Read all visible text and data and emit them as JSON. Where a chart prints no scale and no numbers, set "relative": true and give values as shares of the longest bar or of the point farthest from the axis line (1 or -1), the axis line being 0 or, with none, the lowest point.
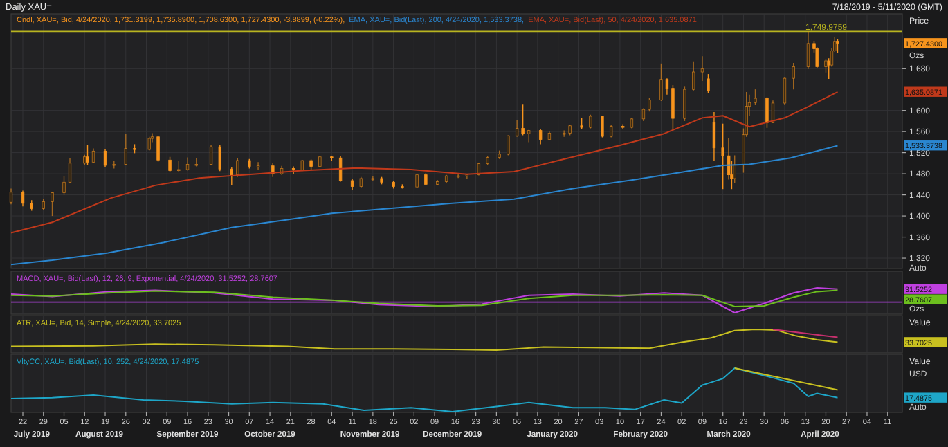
{
  "chart_data": [
    {
      "type": "candlestick",
      "title": "Daily XAU=",
      "subtitle": "7/18/2019 - 5/11/2020 (GMT)",
      "ylabel": "Price",
      "xlim": [
        "2019-07-18",
        "2020-05-16"
      ],
      "ylim": [
        1303,
        1757
      ],
      "grid": true,
      "legend": "top left",
      "tick_labels": "y",
      "yticks": [
        {
          "value": 1320,
          "label": "1,320"
        },
        {
          "value": 1360,
          "label": "1,360"
        },
        {
          "value": 1400,
          "label": "1,400"
        },
        {
          "value": 1440,
          "label": "1,440"
        },
        {
          "value": 1480,
          "label": "1,480"
        },
        {
          "value": 1520,
          "label": "1,520"
        },
        {
          "value": 1560,
          "label": "1,560"
        },
        {
          "value": 1600,
          "label": "1,600"
        },
        {
          "value": 1680,
          "label": "1,680"
        }
      ],
      "ref_lines": [
        {
          "axis": "y",
          "value": 1749.9759,
          "label": "1,749.9759",
          "color": "#b8b420"
        }
      ],
      "annotations": [
        "1,727.4300",
        "1,635.0871",
        "1,533.3738",
        "Ozs",
        "Auto"
      ],
      "series": [
        {
          "name": "Cndl, XAU=, Bid, 4/24/2020, 1,731.3199, 1,735.8900, 1,708.6300, 1,727.4300, -3.8899, (-0.22%),",
          "color": "#f7941d",
          "x": [
            "2019-07-18",
            "2019-07-22",
            "2019-07-25",
            "2019-07-29",
            "2019-08-01",
            "2019-08-05",
            "2019-08-07",
            "2019-08-12",
            "2019-08-13",
            "2019-08-15",
            "2019-08-19",
            "2019-08-22",
            "2019-08-26",
            "2019-08-29",
            "2019-09-03",
            "2019-09-04",
            "2019-09-06",
            "2019-09-10",
            "2019-09-13",
            "2019-09-16",
            "2019-09-19",
            "2019-09-24",
            "2019-09-27",
            "2019-10-01",
            "2019-10-03",
            "2019-10-07",
            "2019-10-10",
            "2019-10-15",
            "2019-10-18",
            "2019-10-22",
            "2019-10-25",
            "2019-10-28",
            "2019-10-31",
            "2019-11-04",
            "2019-11-07",
            "2019-11-11",
            "2019-11-14",
            "2019-11-18",
            "2019-11-21",
            "2019-11-25",
            "2019-11-28",
            "2019-12-03",
            "2019-12-06",
            "2019-12-10",
            "2019-12-13",
            "2019-12-17",
            "2019-12-20",
            "2019-12-24",
            "2019-12-27",
            "2019-12-31",
            "2020-01-03",
            "2020-01-06",
            "2020-01-08",
            "2020-01-10",
            "2020-01-14",
            "2020-01-17",
            "2020-01-22",
            "2020-01-24",
            "2020-01-28",
            "2020-01-31",
            "2020-02-04",
            "2020-02-07",
            "2020-02-11",
            "2020-02-14",
            "2020-02-18",
            "2020-02-20",
            "2020-02-24",
            "2020-02-26",
            "2020-02-28",
            "2020-03-03",
            "2020-03-06",
            "2020-03-09",
            "2020-03-11",
            "2020-03-13",
            "2020-03-16",
            "2020-03-18",
            "2020-03-19",
            "2020-03-20",
            "2020-03-23",
            "2020-03-24",
            "2020-03-25",
            "2020-03-27",
            "2020-03-31",
            "2020-04-02",
            "2020-04-06",
            "2020-04-09",
            "2020-04-14",
            "2020-04-16",
            "2020-04-17",
            "2020-04-20",
            "2020-04-21",
            "2020-04-22",
            "2020-04-23",
            "2020-04-24"
          ],
          "ohlc": [
            [
              1426,
              1452,
              1422,
              1445
            ],
            [
              1445,
              1448,
              1418,
              1424
            ],
            [
              1424,
              1430,
              1410,
              1414
            ],
            [
              1414,
              1432,
              1412,
              1427
            ],
            [
              1427,
              1446,
              1400,
              1444
            ],
            [
              1444,
              1475,
              1440,
              1464
            ],
            [
              1464,
              1510,
              1462,
              1500
            ],
            [
              1500,
              1516,
              1496,
              1512
            ],
            [
              1512,
              1534,
              1496,
              1502
            ],
            [
              1502,
              1528,
              1500,
              1523
            ],
            [
              1523,
              1526,
              1492,
              1496
            ],
            [
              1496,
              1504,
              1490,
              1498
            ],
            [
              1498,
              1555,
              1496,
              1528
            ],
            [
              1528,
              1536,
              1519,
              1526
            ],
            [
              1526,
              1550,
              1524,
              1547
            ],
            [
              1547,
              1557,
              1540,
              1550
            ],
            [
              1550,
              1552,
              1503,
              1506
            ],
            [
              1506,
              1512,
              1484,
              1486
            ],
            [
              1486,
              1504,
              1483,
              1488
            ],
            [
              1488,
              1511,
              1486,
              1498
            ],
            [
              1498,
              1510,
              1494,
              1498
            ],
            [
              1498,
              1535,
              1496,
              1531
            ],
            [
              1531,
              1534,
              1485,
              1489
            ],
            [
              1489,
              1492,
              1459,
              1478
            ],
            [
              1478,
              1510,
              1474,
              1505
            ],
            [
              1505,
              1508,
              1490,
              1494
            ],
            [
              1494,
              1502,
              1488,
              1495
            ],
            [
              1495,
              1500,
              1474,
              1480
            ],
            [
              1480,
              1495,
              1478,
              1490
            ],
            [
              1490,
              1494,
              1480,
              1487
            ],
            [
              1487,
              1506,
              1485,
              1505
            ],
            [
              1505,
              1507,
              1488,
              1494
            ],
            [
              1494,
              1514,
              1492,
              1512
            ],
            [
              1512,
              1514,
              1505,
              1510
            ],
            [
              1510,
              1513,
              1465,
              1467
            ],
            [
              1467,
              1470,
              1450,
              1456
            ],
            [
              1456,
              1474,
              1454,
              1471
            ],
            [
              1471,
              1475,
              1466,
              1471
            ],
            [
              1471,
              1474,
              1460,
              1464
            ],
            [
              1464,
              1466,
              1452,
              1456
            ],
            [
              1456,
              1460,
              1452,
              1455
            ],
            [
              1455,
              1480,
              1454,
              1478
            ],
            [
              1478,
              1481,
              1459,
              1460
            ],
            [
              1460,
              1468,
              1458,
              1465
            ],
            [
              1465,
              1478,
              1462,
              1476
            ],
            [
              1476,
              1479,
              1472,
              1476
            ],
            [
              1476,
              1480,
              1471,
              1478
            ],
            [
              1478,
              1500,
              1477,
              1499
            ],
            [
              1499,
              1514,
              1497,
              1511
            ],
            [
              1511,
              1524,
              1508,
              1517
            ],
            [
              1517,
              1553,
              1515,
              1552
            ],
            [
              1552,
              1582,
              1550,
              1566
            ],
            [
              1566,
              1611,
              1553,
              1556
            ],
            [
              1556,
              1563,
              1540,
              1562
            ],
            [
              1562,
              1564,
              1536,
              1545
            ],
            [
              1545,
              1560,
              1543,
              1557
            ],
            [
              1557,
              1562,
              1550,
              1557
            ],
            [
              1557,
              1573,
              1553,
              1571
            ],
            [
              1571,
              1586,
              1565,
              1568
            ],
            [
              1568,
              1592,
              1566,
              1589
            ],
            [
              1589,
              1590,
              1549,
              1551
            ],
            [
              1551,
              1573,
              1549,
              1570
            ],
            [
              1570,
              1574,
              1564,
              1568
            ],
            [
              1568,
              1585,
              1566,
              1584
            ],
            [
              1584,
              1604,
              1580,
              1602
            ],
            [
              1602,
              1624,
              1598,
              1620
            ],
            [
              1620,
              1689,
              1618,
              1659
            ],
            [
              1659,
              1661,
              1630,
              1642
            ],
            [
              1642,
              1648,
              1563,
              1585
            ],
            [
              1585,
              1645,
              1580,
              1640
            ],
            [
              1640,
              1693,
              1638,
              1673
            ],
            [
              1673,
              1703,
              1656,
              1680
            ],
            [
              1660,
              1669,
              1633,
              1637
            ],
            [
              1577,
              1597,
              1504,
              1529
            ],
            [
              1529,
              1575,
              1451,
              1514
            ],
            [
              1514,
              1548,
              1469,
              1478
            ],
            [
              1478,
              1504,
              1451,
              1471
            ],
            [
              1471,
              1515,
              1463,
              1497
            ],
            [
              1497,
              1566,
              1482,
              1554
            ],
            [
              1554,
              1635,
              1550,
              1608
            ],
            [
              1608,
              1630,
              1590,
              1615
            ],
            [
              1615,
              1640,
              1610,
              1623
            ],
            [
              1623,
              1625,
              1567,
              1577
            ],
            [
              1577,
              1619,
              1576,
              1614
            ],
            [
              1614,
              1664,
              1610,
              1661
            ],
            [
              1661,
              1690,
              1640,
              1683
            ],
            [
              1683,
              1749.98,
              1680,
              1727
            ],
            [
              1727,
              1732,
              1710,
              1717
            ],
            [
              1717,
              1720,
              1681,
              1683
            ],
            [
              1683,
              1698,
              1672,
              1694
            ],
            [
              1694,
              1699,
              1660,
              1686
            ],
            [
              1686,
              1718,
              1683,
              1713
            ],
            [
              1713,
              1739,
              1711,
              1731
            ],
            [
              1731.3199,
              1735.89,
              1708.63,
              1727.43
            ]
          ]
        },
        {
          "type": "line",
          "name": "EMA, XAU=, Bid(Last), 200, 4/24/2020, 1,533.3738,",
          "color": "#2a86d0",
          "x": [
            "2019-07-18",
            "2019-08-01",
            "2019-08-20",
            "2019-09-08",
            "2019-10-01",
            "2019-10-20",
            "2019-11-04",
            "2019-11-25",
            "2019-12-15",
            "2020-01-05",
            "2020-01-25",
            "2020-02-14",
            "2020-03-01",
            "2020-03-16",
            "2020-03-25",
            "2020-04-08",
            "2020-04-24"
          ],
          "values": [
            1308,
            1316,
            1330,
            1350,
            1378,
            1393,
            1405,
            1415,
            1424,
            1432,
            1452,
            1468,
            1482,
            1496,
            1498,
            1510,
            1533.3738
          ]
        },
        {
          "type": "line",
          "name": "EMA, XAU=, Bid(Last), 50, 4/24/2020, 1,635.0871",
          "color": "#c0391b",
          "x": [
            "2019-07-18",
            "2019-08-01",
            "2019-08-21",
            "2019-09-05",
            "2019-09-20",
            "2019-10-05",
            "2019-10-25",
            "2019-11-12",
            "2019-12-01",
            "2019-12-20",
            "2020-01-05",
            "2020-01-20",
            "2020-02-10",
            "2020-02-25",
            "2020-03-09",
            "2020-03-16",
            "2020-03-25",
            "2020-04-06",
            "2020-04-15",
            "2020-04-24"
          ],
          "values": [
            1368,
            1388,
            1434,
            1458,
            1472,
            1478,
            1486,
            1491,
            1488,
            1479,
            1484,
            1505,
            1534,
            1556,
            1586,
            1590,
            1569,
            1586,
            1610,
            1635.0871
          ]
        }
      ]
    },
    {
      "type": "line",
      "title": "MACD, XAU=, Bid(Last), 12, 26, 9, Exponential, 4/24/2020, 31.5252, 28.7607",
      "relative": true,
      "xlim": [
        "2019-07-18",
        "2020-05-16"
      ],
      "grid": "x",
      "tick_labels": false,
      "ref_lines": [
        {
          "axis": "y",
          "value": 0,
          "color": "#a040c8"
        }
      ],
      "annotations": [
        "31.5252",
        "28.7607",
        "Ozs"
      ],
      "series": [
        {
          "color": "#c040e0",
          "x": [
            "2019-07-18",
            "2019-08-01",
            "2019-08-20",
            "2019-09-05",
            "2019-09-25",
            "2019-10-15",
            "2019-11-05",
            "2019-11-20",
            "2019-12-10",
            "2019-12-25",
            "2020-01-10",
            "2020-01-25",
            "2020-02-10",
            "2020-02-25",
            "2020-03-09",
            "2020-03-20",
            "2020-03-30",
            "2020-04-09",
            "2020-04-17",
            "2020-04-24"
          ],
          "values": [
            0.57,
            0.39,
            0.74,
            0.83,
            0.65,
            0.22,
            0.13,
            -0.17,
            -0.3,
            -0.13,
            0.48,
            0.57,
            0.43,
            0.65,
            0.48,
            -0.74,
            -0.09,
            0.65,
            1,
            0.91
          ]
        },
        {
          "color": "#6cbf1e",
          "x": [
            "2019-07-18",
            "2019-08-01",
            "2019-08-20",
            "2019-09-05",
            "2019-09-25",
            "2019-10-15",
            "2019-11-05",
            "2019-11-20",
            "2019-12-10",
            "2019-12-25",
            "2020-01-10",
            "2020-01-25",
            "2020-02-10",
            "2020-02-25",
            "2020-03-09",
            "2020-03-20",
            "2020-03-30",
            "2020-04-09",
            "2020-04-17",
            "2020-04-24"
          ],
          "values": [
            0.48,
            0.43,
            0.65,
            0.78,
            0.7,
            0.35,
            0.13,
            -0.09,
            -0.26,
            -0.22,
            0.26,
            0.48,
            0.48,
            0.52,
            0.48,
            -0.3,
            -0.26,
            0.35,
            0.74,
            0.83
          ]
        }
      ]
    },
    {
      "type": "line",
      "title": "ATR, XAU=, Bid, 14, Simple, 4/24/2020, 33.7025",
      "ylabel": "Value",
      "relative": true,
      "xlim": [
        "2019-07-18",
        "2020-05-16"
      ],
      "grid": "x",
      "tick_labels": false,
      "annotations": [
        "33.7025"
      ],
      "series": [
        {
          "color": "#c8c020",
          "x": [
            "2019-07-18",
            "2019-08-15",
            "2019-09-05",
            "2019-09-25",
            "2019-10-20",
            "2019-11-05",
            "2019-11-25",
            "2019-12-15",
            "2019-12-30",
            "2020-01-15",
            "2020-02-05",
            "2020-02-20",
            "2020-03-02",
            "2020-03-12",
            "2020-03-20",
            "2020-03-27",
            "2020-04-03",
            "2020-04-10",
            "2020-04-17",
            "2020-04-24"
          ],
          "values": [
            0.18,
            0.21,
            0.29,
            0.26,
            0.18,
            0.06,
            0.06,
            0.03,
            0,
            0.15,
            0.12,
            0.09,
            0.38,
            0.59,
            0.94,
            1,
            0.97,
            0.68,
            0.5,
            0.38
          ]
        },
        {
          "type": "line",
          "color": "#c8306e",
          "x": [
            "2020-04-02",
            "2020-04-24"
          ],
          "values": [
            1,
            0.62
          ]
        }
      ]
    },
    {
      "type": "line",
      "title": "VltyCC, XAU=, Bid(Last), 10, 252, 4/24/2020, 17.4875",
      "ylabel": "Value",
      "relative": true,
      "xlim": [
        "2019-07-18",
        "2020-05-16"
      ],
      "x2lim": [
        "2019-07-18",
        "2020-05-16"
      ],
      "grid": "x",
      "xticks": [
        {
          "value": "2019-07-22",
          "label": "22"
        },
        {
          "value": "2019-07-29",
          "label": "29"
        },
        {
          "value": "2019-08-05",
          "label": "05"
        },
        {
          "value": "2019-08-12",
          "label": "12"
        },
        {
          "value": "2019-08-19",
          "label": "19"
        },
        {
          "value": "2019-08-26",
          "label": "26"
        },
        {
          "value": "2019-09-02",
          "label": "02"
        },
        {
          "value": "2019-09-09",
          "label": "09"
        },
        {
          "value": "2019-09-16",
          "label": "16"
        },
        {
          "value": "2019-09-23",
          "label": "23"
        },
        {
          "value": "2019-09-30",
          "label": "30"
        },
        {
          "value": "2019-10-07",
          "label": "07"
        },
        {
          "value": "2019-10-14",
          "label": "14"
        },
        {
          "value": "2019-10-21",
          "label": "21"
        },
        {
          "value": "2019-10-28",
          "label": "28"
        },
        {
          "value": "2019-11-04",
          "label": "04"
        },
        {
          "value": "2019-11-11",
          "label": "11"
        },
        {
          "value": "2019-11-18",
          "label": "18"
        },
        {
          "value": "2019-11-25",
          "label": "25"
        },
        {
          "value": "2019-12-02",
          "label": "02"
        },
        {
          "value": "2019-12-09",
          "label": "09"
        },
        {
          "value": "2019-12-16",
          "label": "16"
        },
        {
          "value": "2019-12-23",
          "label": "23"
        },
        {
          "value": "2019-12-30",
          "label": "30"
        },
        {
          "value": "2020-01-06",
          "label": "06"
        },
        {
          "value": "2020-01-13",
          "label": "13"
        },
        {
          "value": "2020-01-20",
          "label": "20"
        },
        {
          "value": "2020-01-27",
          "label": "27"
        },
        {
          "value": "2020-02-03",
          "label": "03"
        },
        {
          "value": "2020-02-10",
          "label": "10"
        },
        {
          "value": "2020-02-17",
          "label": "17"
        },
        {
          "value": "2020-02-24",
          "label": "24"
        },
        {
          "value": "2020-03-02",
          "label": "02"
        },
        {
          "value": "2020-03-09",
          "label": "09"
        },
        {
          "value": "2020-03-16",
          "label": "16"
        },
        {
          "value": "2020-03-23",
          "label": "23"
        },
        {
          "value": "2020-03-30",
          "label": "30"
        },
        {
          "value": "2020-04-06",
          "label": "06"
        },
        {
          "value": "2020-04-13",
          "label": "13"
        },
        {
          "value": "2020-04-20",
          "label": "20"
        },
        {
          "value": "2020-04-27",
          "label": "27"
        },
        {
          "value": "2020-05-04",
          "label": "04"
        },
        {
          "value": "2020-05-11",
          "label": "11"
        }
      ],
      "x2ticks": [
        {
          "value": "2019-07-25",
          "label": "July 2019"
        },
        {
          "value": "2019-08-17",
          "label": "August 2019"
        },
        {
          "value": "2019-09-16",
          "label": "September 2019"
        },
        {
          "value": "2019-10-14",
          "label": "October 2019"
        },
        {
          "value": "2019-11-17",
          "label": "November 2019"
        },
        {
          "value": "2019-12-15",
          "label": "December 2019"
        },
        {
          "value": "2020-01-18",
          "label": "January 2020"
        },
        {
          "value": "2020-02-17",
          "label": "February 2020"
        },
        {
          "value": "2020-03-18",
          "label": "March 2020"
        },
        {
          "value": "2020-04-18",
          "label": "April 2020"
        }
      ],
      "annotations": [
        "17.4875",
        "USD",
        "Auto"
      ],
      "series": [
        {
          "color": "#1ea6c8",
          "x": [
            "2019-07-18",
            "2019-08-01",
            "2019-08-15",
            "2019-09-01",
            "2019-09-15",
            "2019-10-01",
            "2019-10-15",
            "2019-11-01",
            "2019-11-15",
            "2019-12-01",
            "2019-12-15",
            "2019-12-30",
            "2020-01-10",
            "2020-01-25",
            "2020-02-05",
            "2020-02-15",
            "2020-02-25",
            "2020-03-02",
            "2020-03-09",
            "2020-03-16",
            "2020-03-20",
            "2020-03-27",
            "2020-04-03",
            "2020-04-09",
            "2020-04-14",
            "2020-04-17",
            "2020-04-24"
          ],
          "values": [
            0.3,
            0.32,
            0.38,
            0.27,
            0.24,
            0.18,
            0.21,
            0.18,
            0.03,
            0.09,
            0,
            0.12,
            0.21,
            0.09,
            0.09,
            0.05,
            0.27,
            0.2,
            0.61,
            0.76,
            1,
            0.88,
            0.76,
            0.65,
            0.35,
            0.42,
            0.32
          ]
        },
        {
          "type": "line",
          "color": "#c8c020",
          "x": [
            "2020-03-20",
            "2020-04-24"
          ],
          "values": [
            1,
            0.5
          ]
        }
      ]
    }
  ]
}
